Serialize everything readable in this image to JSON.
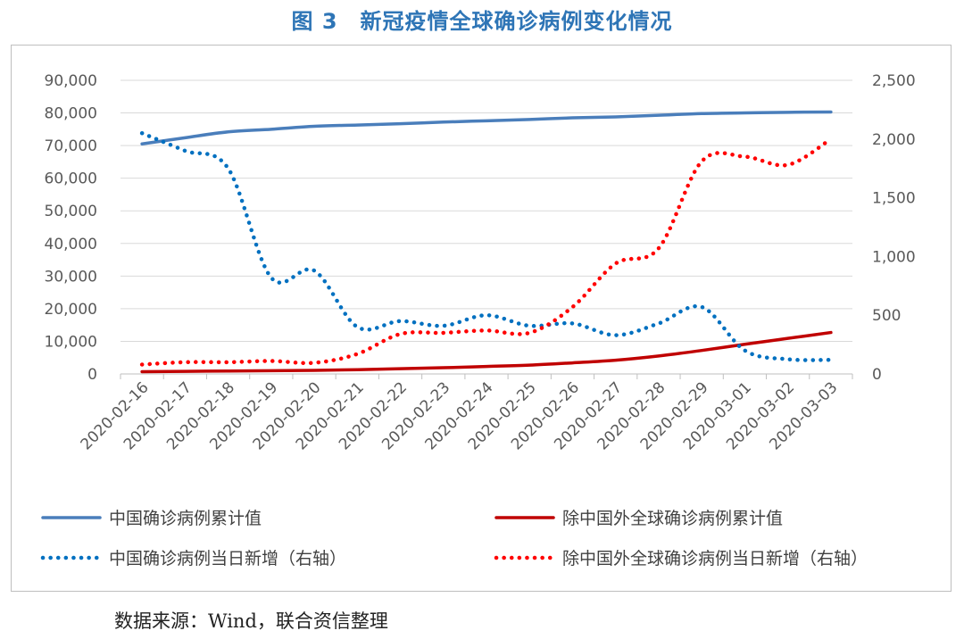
{
  "title": "图 3　新冠疫情全球确诊病例变化情况",
  "source": "数据来源：Wind，联合资信整理",
  "colors": {
    "blue": "#4a7ebb",
    "red": "#c00000",
    "blue_dot": "#0070c0",
    "red_dot": "#ff0000",
    "grid": "#d9d9d9",
    "text": "#595959"
  },
  "chart_data": {
    "type": "line",
    "x": [
      "2020-02-16",
      "2020-02-17",
      "2020-02-18",
      "2020-02-19",
      "2020-02-20",
      "2020-02-21",
      "2020-02-22",
      "2020-02-23",
      "2020-02-24",
      "2020-02-25",
      "2020-02-26",
      "2020-02-27",
      "2020-02-28",
      "2020-02-29",
      "2020-03-01",
      "2020-03-02",
      "2020-03-03"
    ],
    "y_left": {
      "ticks": [
        "0",
        "10,000",
        "20,000",
        "30,000",
        "40,000",
        "50,000",
        "60,000",
        "70,000",
        "80,000",
        "90,000"
      ],
      "ylim": [
        0,
        90000
      ]
    },
    "y_right": {
      "ticks": [
        "0",
        "500",
        "1,000",
        "1,500",
        "2,000",
        "2,500"
      ],
      "ylim": [
        0,
        2500
      ]
    },
    "legend_placement": "bottom",
    "grid": true,
    "series": [
      {
        "name": "中国确诊病例累计值",
        "axis": "left",
        "style": "solid",
        "values": [
          70500,
          72400,
          74200,
          75000,
          75900,
          76300,
          76700,
          77200,
          77600,
          78000,
          78500,
          78800,
          79300,
          79800,
          80000,
          80200,
          80300
        ]
      },
      {
        "name": "除中国外全球确诊病例累计值",
        "axis": "left",
        "style": "solid",
        "values": [
          700,
          800,
          900,
          1000,
          1100,
          1300,
          1600,
          1900,
          2300,
          2700,
          3400,
          4200,
          5500,
          7200,
          9100,
          10900,
          12700
        ]
      },
      {
        "name": "中国确诊病例当日新增（右轴）",
        "axis": "right",
        "style": "dotted",
        "values": [
          2050,
          1900,
          1750,
          820,
          880,
          400,
          450,
          410,
          500,
          410,
          430,
          330,
          430,
          570,
          200,
          125,
          120
        ]
      },
      {
        "name": "除中国外全球确诊病例当日新增（右轴）",
        "axis": "right",
        "style": "dotted",
        "values": [
          80,
          100,
          100,
          110,
          95,
          170,
          340,
          350,
          370,
          350,
          570,
          940,
          1070,
          1810,
          1850,
          1780,
          2000
        ]
      }
    ]
  }
}
